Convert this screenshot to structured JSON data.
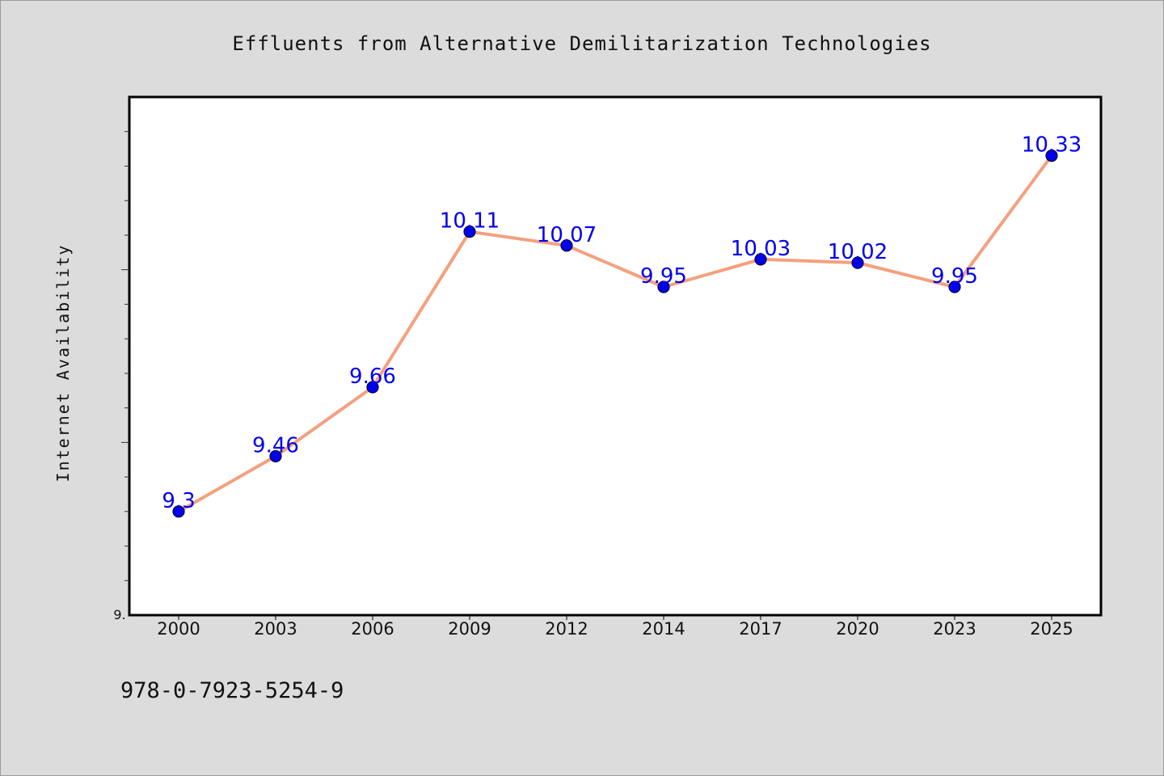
{
  "chart_data": {
    "type": "line",
    "title": "Effluents from Alternative Demilitarization Technologies",
    "xlabel": "",
    "ylabel": "Internet Availability",
    "categories": [
      "2000",
      "2003",
      "2006",
      "2009",
      "2012",
      "2014",
      "2017",
      "2020",
      "2023",
      "2025"
    ],
    "series": [
      {
        "values": [
          9.3,
          9.46,
          9.66,
          10.11,
          10.07,
          9.95,
          10.03,
          10.02,
          9.95,
          10.33
        ]
      }
    ],
    "data_labels": [
      "9.3",
      "9.46",
      "9.66",
      "10.11",
      "10.07",
      "9.95",
      "10.03",
      "10.02",
      "9.95",
      "10.33"
    ],
    "y_tick_label": "9.",
    "ylim": [
      9.0,
      10.5
    ],
    "grid": false,
    "legend": "none",
    "colors": {
      "line": "#f4a07e",
      "marker": "#0000ee",
      "marker_edge": "#000033",
      "data_label": "#0000ee",
      "plot_bg": "#ffffff",
      "page_bg": "#dcdcdc"
    }
  },
  "footer_text": "978-0-7923-5254-9"
}
